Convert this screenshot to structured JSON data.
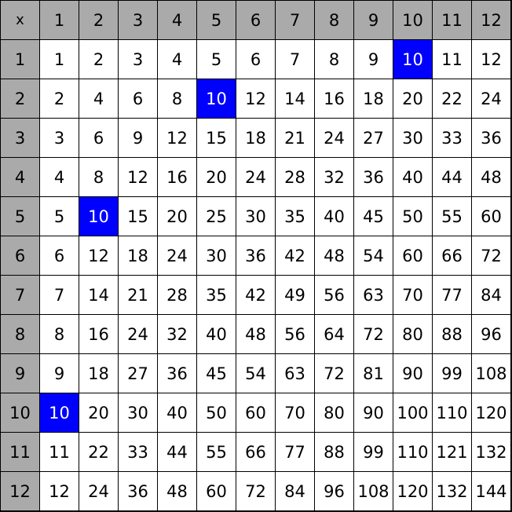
{
  "table": {
    "corner": "x",
    "column_headers": [
      "1",
      "2",
      "3",
      "4",
      "5",
      "6",
      "7",
      "8",
      "9",
      "10",
      "11",
      "12"
    ],
    "row_headers": [
      "1",
      "2",
      "3",
      "4",
      "5",
      "6",
      "7",
      "8",
      "9",
      "10",
      "11",
      "12"
    ],
    "rows": [
      [
        "1",
        "2",
        "3",
        "4",
        "5",
        "6",
        "7",
        "8",
        "9",
        "10",
        "11",
        "12"
      ],
      [
        "2",
        "4",
        "6",
        "8",
        "10",
        "12",
        "14",
        "16",
        "18",
        "20",
        "22",
        "24"
      ],
      [
        "3",
        "6",
        "9",
        "12",
        "15",
        "18",
        "21",
        "24",
        "27",
        "30",
        "33",
        "36"
      ],
      [
        "4",
        "8",
        "12",
        "16",
        "20",
        "24",
        "28",
        "32",
        "36",
        "40",
        "44",
        "48"
      ],
      [
        "5",
        "10",
        "15",
        "20",
        "25",
        "30",
        "35",
        "40",
        "45",
        "50",
        "55",
        "60"
      ],
      [
        "6",
        "12",
        "18",
        "24",
        "30",
        "36",
        "42",
        "48",
        "54",
        "60",
        "66",
        "72"
      ],
      [
        "7",
        "14",
        "21",
        "28",
        "35",
        "42",
        "49",
        "56",
        "63",
        "70",
        "77",
        "84"
      ],
      [
        "8",
        "16",
        "24",
        "32",
        "40",
        "48",
        "56",
        "64",
        "72",
        "80",
        "88",
        "96"
      ],
      [
        "9",
        "18",
        "27",
        "36",
        "45",
        "54",
        "63",
        "72",
        "81",
        "90",
        "99",
        "108"
      ],
      [
        "10",
        "20",
        "30",
        "40",
        "50",
        "60",
        "70",
        "80",
        "90",
        "100",
        "110",
        "120"
      ],
      [
        "11",
        "22",
        "33",
        "44",
        "55",
        "66",
        "77",
        "88",
        "99",
        "110",
        "121",
        "132"
      ],
      [
        "12",
        "24",
        "36",
        "48",
        "60",
        "72",
        "84",
        "96",
        "108",
        "120",
        "132",
        "144"
      ]
    ],
    "highlighted_value": "10",
    "colors": {
      "header_bg": "#aaaaaa",
      "highlight_bg": "#0000ff",
      "highlight_text": "#ffffff",
      "cell_bg": "#ffffff",
      "grid_line": "#000000"
    }
  }
}
